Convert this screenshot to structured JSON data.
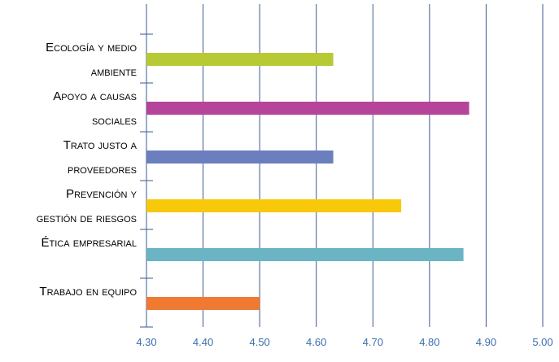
{
  "chart_data": {
    "type": "bar",
    "orientation": "horizontal",
    "categories": [
      "Ecología y medio ambiente",
      "Apoyo a causas sociales",
      "Trato justo a proveedores",
      "Prevención y gestión de riesgos",
      "Ética empresarial",
      "Trabajo en equipo"
    ],
    "category_label_lines": [
      [
        "Ecología y medio",
        "ambiente"
      ],
      [
        "Apoyo a causas",
        "sociales"
      ],
      [
        "Trato justo a",
        "proveedores"
      ],
      [
        "Prevención y",
        "gestión de riesgos"
      ],
      [
        "Ética empresarial"
      ],
      [
        "Trabajo en equipo"
      ]
    ],
    "values": [
      4.63,
      4.87,
      4.63,
      4.75,
      4.86,
      4.5
    ],
    "bar_colors": [
      "#b8c936",
      "#b5449a",
      "#6b7fbf",
      "#f8c80b",
      "#6ab4c4",
      "#f07a32"
    ],
    "x_ticks": [
      "4.30",
      "4.40",
      "4.50",
      "4.60",
      "4.70",
      "4.80",
      "4.90",
      "5.00"
    ],
    "xlim": [
      4.3,
      5.0
    ],
    "title": "",
    "xlabel": "",
    "ylabel": "",
    "grid": "vertical",
    "grid_color": "#3b5a8f",
    "tick_color": "#3b6fb0"
  }
}
